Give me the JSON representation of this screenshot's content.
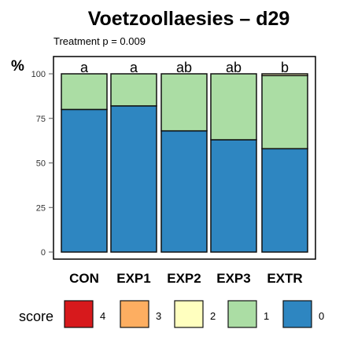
{
  "chart_data": {
    "type": "bar",
    "stacked": true,
    "title": "Voetzoollaesies – d29",
    "subtitle": "Treatment p = 0.009",
    "ylabel": "%",
    "ylim": [
      0,
      100
    ],
    "yticks": [
      0,
      25,
      50,
      75,
      100
    ],
    "categories": [
      "CON",
      "EXP1",
      "EXP2",
      "EXP3",
      "EXTR"
    ],
    "annotations": [
      "a",
      "a",
      "ab",
      "ab",
      "b"
    ],
    "series": [
      {
        "name": "0",
        "color": "#2e86c1",
        "values": [
          80,
          82,
          68,
          63,
          58
        ]
      },
      {
        "name": "1",
        "color": "#abdda4",
        "values": [
          20,
          18,
          32,
          37,
          41
        ]
      },
      {
        "name": "2",
        "color": "#ffffbf",
        "values": [
          0,
          0,
          0,
          0,
          1
        ]
      },
      {
        "name": "3",
        "color": "#fdae61",
        "values": [
          0,
          0,
          0,
          0,
          0
        ]
      },
      {
        "name": "4",
        "color": "#d7191c",
        "values": [
          0,
          0,
          0,
          0,
          0
        ]
      }
    ],
    "legend": {
      "title": "score",
      "placement": "bottom",
      "order": [
        "4",
        "3",
        "2",
        "1",
        "0"
      ]
    }
  }
}
